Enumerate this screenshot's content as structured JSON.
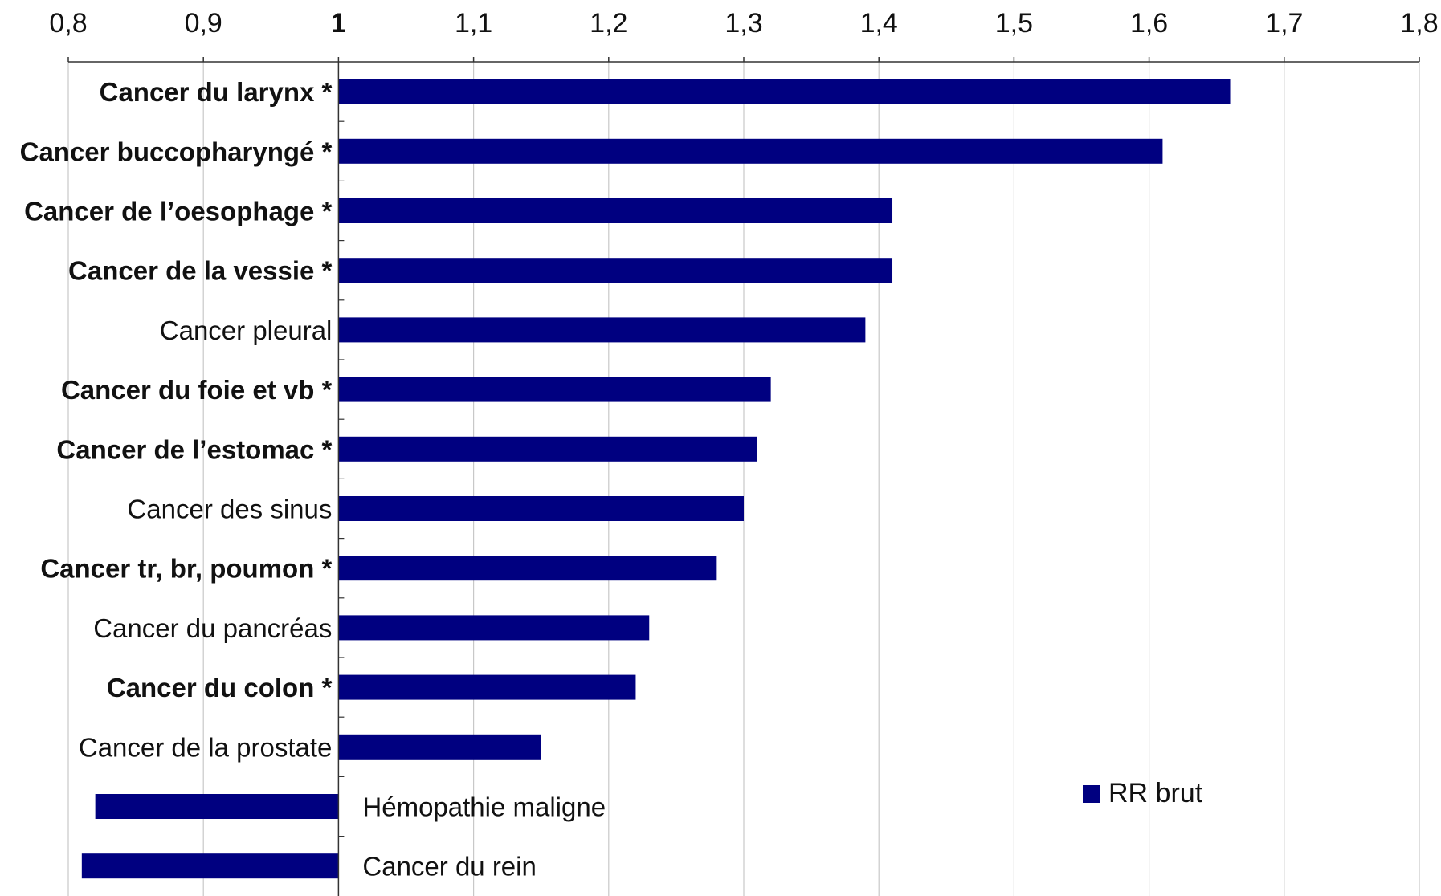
{
  "chart_data": {
    "type": "bar",
    "orientation": "horizontal",
    "axis_position": "top",
    "baseline": 1,
    "xlim": [
      0.8,
      1.8
    ],
    "grid": true,
    "legend_position": "bottom-right",
    "x_tick_values": [
      0.8,
      0.9,
      1,
      1.1,
      1.2,
      1.3,
      1.4,
      1.5,
      1.6,
      1.7,
      1.8
    ],
    "x_tick_labels": [
      "0,8",
      "0,9",
      "1",
      "1,1",
      "1,2",
      "1,3",
      "1,4",
      "1,5",
      "1,6",
      "1,7",
      "1,8"
    ],
    "categories": [
      "Cancer du larynx *",
      "Cancer buccopharyngé *",
      "Cancer de l’oesophage *",
      "Cancer de la vessie *",
      "Cancer pleural",
      "Cancer du foie et vb *",
      "Cancer de l’estomac *",
      "Cancer des sinus",
      "Cancer tr, br, poumon *",
      "Cancer du pancréas",
      "Cancer du colon *",
      "Cancer de la prostate",
      "Hémopathie maligne",
      "Cancer du rein"
    ],
    "bold_categories": [
      true,
      true,
      true,
      true,
      false,
      true,
      true,
      false,
      true,
      false,
      true,
      false,
      false,
      false
    ],
    "series": [
      {
        "name": "RR brut",
        "color": "#000080",
        "values": [
          1.66,
          1.61,
          1.41,
          1.41,
          1.39,
          1.32,
          1.31,
          1.3,
          1.28,
          1.23,
          1.22,
          1.15,
          0.82,
          0.81
        ]
      }
    ]
  }
}
